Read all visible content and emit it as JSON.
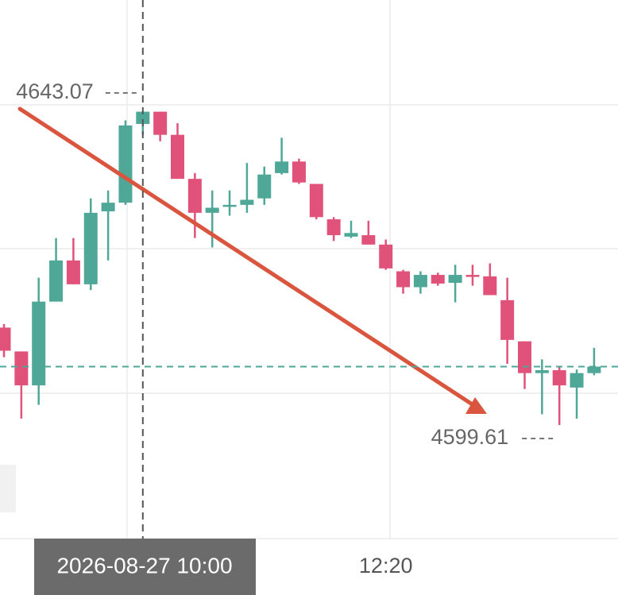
{
  "chart_data": {
    "type": "candlestick",
    "open": [
      4613.1,
      4609.8,
      4605.1,
      4616.7,
      4622.4,
      4619.1,
      4629.2,
      4630.4,
      4641.3,
      4643.0,
      4639.8,
      4633.7,
      4629.0,
      4629.9,
      4630.1,
      4631.0,
      4634.5,
      4636.1,
      4633.0,
      4628.1,
      4625.7,
      4625.9,
      4624.6,
      4620.9,
      4618.7,
      4620.4,
      4619.3,
      4620.4,
      4620.2,
      4616.9,
      4611.2,
      4606.8,
      4607.2,
      4604.8,
      4606.8
    ],
    "high": [
      4613.6,
      4609.8,
      4620.0,
      4625.5,
      4625.5,
      4631.0,
      4632.1,
      4641.8,
      4643.07,
      4643.0,
      4641.4,
      4634.5,
      4632.1,
      4632.1,
      4635.9,
      4635.4,
      4639.4,
      4636.5,
      4633.0,
      4628.4,
      4627.9,
      4627.9,
      4625.3,
      4621.1,
      4620.9,
      4620.7,
      4621.8,
      4621.8,
      4622.0,
      4620.0,
      4611.2,
      4608.7,
      4607.7,
      4607.3,
      4610.3
    ],
    "low": [
      4609.0,
      4600.5,
      4602.4,
      4616.7,
      4619.1,
      4618.3,
      4622.4,
      4630.1,
      4639.8,
      4638.9,
      4633.7,
      4625.5,
      4624.2,
      4628.6,
      4629.0,
      4630.1,
      4634.3,
      4633.0,
      4628.1,
      4625.1,
      4625.5,
      4624.6,
      4621.1,
      4617.8,
      4617.8,
      4618.9,
      4616.6,
      4618.9,
      4617.6,
      4608.1,
      4604.6,
      4601.1,
      4599.61,
      4600.5,
      4606.5
    ],
    "close": [
      4609.9,
      4605.1,
      4616.7,
      4622.4,
      4619.1,
      4629.0,
      4630.4,
      4641.1,
      4643.0,
      4639.8,
      4633.7,
      4629.0,
      4629.7,
      4630.1,
      4630.8,
      4634.3,
      4636.1,
      4633.2,
      4628.4,
      4625.9,
      4626.2,
      4624.6,
      4621.3,
      4618.7,
      4620.4,
      4619.2,
      4620.4,
      4620.2,
      4617.6,
      4611.4,
      4606.8,
      4607.2,
      4605.1,
      4606.8,
      4607.7
    ],
    "ylim": [
      4583.66,
      4658.47
    ],
    "up_color": "#4ea797",
    "down_color": "#e0527a",
    "xticks": [
      {
        "value": 22,
        "label": "12:20"
      }
    ],
    "crosshair": {
      "index": 8,
      "label": "2026-08-27 10:00"
    },
    "max_label": {
      "index": 8,
      "value": 4643.07
    },
    "min_label": {
      "index": 32,
      "value": 4599.61
    }
  }
}
